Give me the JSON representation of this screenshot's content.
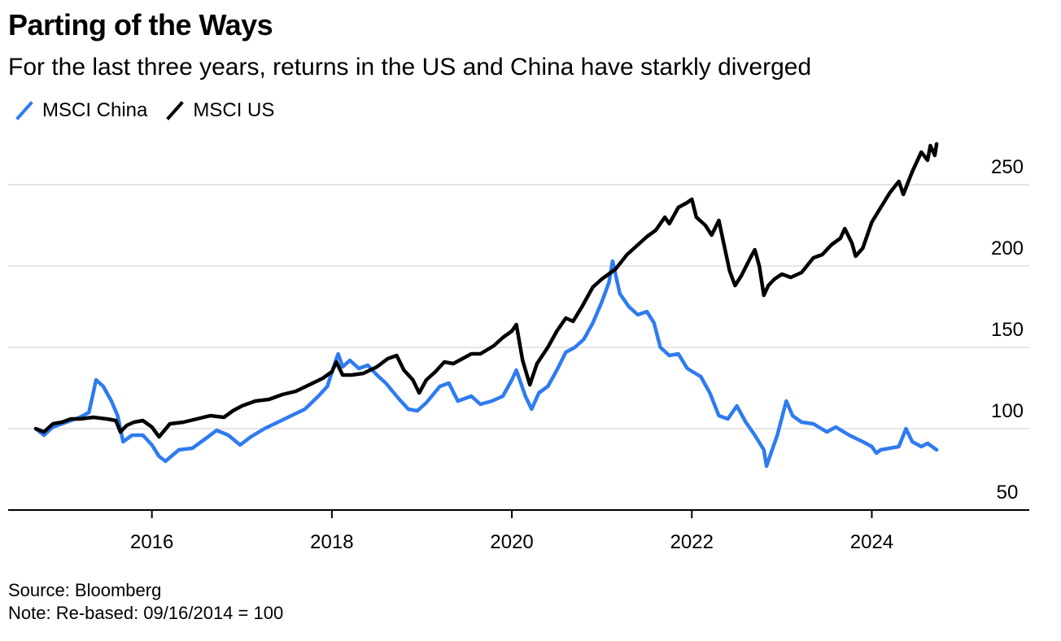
{
  "header": {
    "title": "Parting of the Ways",
    "subtitle": "For the last three years, returns in the US and China have starkly diverged"
  },
  "legend": [
    {
      "label": "MSCI China",
      "color": "#2f7bf0"
    },
    {
      "label": "MSCI US",
      "color": "#000000"
    }
  ],
  "footer": {
    "source": "Source: Bloomberg",
    "note": "Note: Re-based: 09/16/2014 = 100"
  },
  "chart_data": {
    "type": "line",
    "title": "Parting of the Ways",
    "subtitle": "For the last three years, returns in the US and China have starkly diverged",
    "xlabel": "",
    "ylabel": "",
    "xlim": [
      2014.55,
      2025.75
    ],
    "ylim": [
      50,
      285
    ],
    "x_ticks": [
      "2016",
      "2018",
      "2020",
      "2022",
      "2024"
    ],
    "y_ticks": [
      "50",
      "100",
      "150",
      "200",
      "250"
    ],
    "grid": true,
    "y_axis_position": "right",
    "legend_position": "top-left",
    "series": [
      {
        "name": "MSCI China",
        "color": "#2f7bf0",
        "points": [
          [
            2014.71,
            100
          ],
          [
            2014.8,
            96
          ],
          [
            2014.9,
            101
          ],
          [
            2015.0,
            103
          ],
          [
            2015.1,
            105
          ],
          [
            2015.2,
            107
          ],
          [
            2015.3,
            110
          ],
          [
            2015.38,
            130
          ],
          [
            2015.46,
            126
          ],
          [
            2015.55,
            117
          ],
          [
            2015.62,
            108
          ],
          [
            2015.68,
            92
          ],
          [
            2015.78,
            96
          ],
          [
            2015.9,
            96
          ],
          [
            2016.0,
            90
          ],
          [
            2016.08,
            83
          ],
          [
            2016.15,
            80
          ],
          [
            2016.3,
            87
          ],
          [
            2016.45,
            88
          ],
          [
            2016.6,
            94
          ],
          [
            2016.72,
            99
          ],
          [
            2016.85,
            96
          ],
          [
            2016.98,
            90
          ],
          [
            2017.1,
            95
          ],
          [
            2017.25,
            100
          ],
          [
            2017.4,
            104
          ],
          [
            2017.55,
            108
          ],
          [
            2017.7,
            112
          ],
          [
            2017.85,
            120
          ],
          [
            2017.95,
            126
          ],
          [
            2018.05,
            143
          ],
          [
            2018.07,
            146
          ],
          [
            2018.12,
            138
          ],
          [
            2018.2,
            142
          ],
          [
            2018.3,
            137
          ],
          [
            2018.4,
            139
          ],
          [
            2018.5,
            133
          ],
          [
            2018.6,
            128
          ],
          [
            2018.75,
            118
          ],
          [
            2018.85,
            112
          ],
          [
            2018.95,
            111
          ],
          [
            2019.05,
            116
          ],
          [
            2019.2,
            126
          ],
          [
            2019.3,
            128
          ],
          [
            2019.4,
            117
          ],
          [
            2019.55,
            120
          ],
          [
            2019.65,
            115
          ],
          [
            2019.78,
            117
          ],
          [
            2019.9,
            120
          ],
          [
            2020.0,
            130
          ],
          [
            2020.05,
            136
          ],
          [
            2020.15,
            120
          ],
          [
            2020.22,
            112
          ],
          [
            2020.3,
            122
          ],
          [
            2020.4,
            126
          ],
          [
            2020.5,
            136
          ],
          [
            2020.6,
            147
          ],
          [
            2020.7,
            150
          ],
          [
            2020.8,
            155
          ],
          [
            2020.9,
            165
          ],
          [
            2021.0,
            178
          ],
          [
            2021.08,
            190
          ],
          [
            2021.12,
            203
          ],
          [
            2021.2,
            183
          ],
          [
            2021.3,
            175
          ],
          [
            2021.4,
            170
          ],
          [
            2021.5,
            172
          ],
          [
            2021.58,
            165
          ],
          [
            2021.65,
            150
          ],
          [
            2021.75,
            145
          ],
          [
            2021.85,
            146
          ],
          [
            2021.95,
            137
          ],
          [
            2022.1,
            132
          ],
          [
            2022.2,
            122
          ],
          [
            2022.3,
            108
          ],
          [
            2022.4,
            106
          ],
          [
            2022.5,
            114
          ],
          [
            2022.6,
            104
          ],
          [
            2022.7,
            96
          ],
          [
            2022.8,
            87
          ],
          [
            2022.83,
            77
          ],
          [
            2022.88,
            85
          ],
          [
            2022.95,
            96
          ],
          [
            2023.05,
            117
          ],
          [
            2023.12,
            108
          ],
          [
            2023.22,
            104
          ],
          [
            2023.35,
            103
          ],
          [
            2023.5,
            98
          ],
          [
            2023.6,
            101
          ],
          [
            2023.75,
            96
          ],
          [
            2023.9,
            92
          ],
          [
            2024.0,
            89
          ],
          [
            2024.05,
            85
          ],
          [
            2024.1,
            87
          ],
          [
            2024.2,
            88
          ],
          [
            2024.3,
            89
          ],
          [
            2024.38,
            100
          ],
          [
            2024.45,
            92
          ],
          [
            2024.55,
            89
          ],
          [
            2024.62,
            91
          ],
          [
            2024.72,
            87
          ]
        ]
      },
      {
        "name": "MSCI US",
        "color": "#000000",
        "points": [
          [
            2014.71,
            100
          ],
          [
            2014.8,
            98
          ],
          [
            2014.9,
            103
          ],
          [
            2015.0,
            104
          ],
          [
            2015.1,
            106
          ],
          [
            2015.2,
            106
          ],
          [
            2015.35,
            107
          ],
          [
            2015.5,
            106
          ],
          [
            2015.6,
            105
          ],
          [
            2015.65,
            98
          ],
          [
            2015.72,
            102
          ],
          [
            2015.8,
            104
          ],
          [
            2015.9,
            105
          ],
          [
            2016.0,
            101
          ],
          [
            2016.08,
            95
          ],
          [
            2016.2,
            103
          ],
          [
            2016.35,
            104
          ],
          [
            2016.5,
            106
          ],
          [
            2016.65,
            108
          ],
          [
            2016.8,
            107
          ],
          [
            2016.9,
            111
          ],
          [
            2017.0,
            114
          ],
          [
            2017.15,
            117
          ],
          [
            2017.3,
            118
          ],
          [
            2017.45,
            121
          ],
          [
            2017.6,
            123
          ],
          [
            2017.75,
            127
          ],
          [
            2017.9,
            131
          ],
          [
            2018.0,
            135
          ],
          [
            2018.05,
            141
          ],
          [
            2018.12,
            133
          ],
          [
            2018.22,
            133
          ],
          [
            2018.35,
            134
          ],
          [
            2018.5,
            138
          ],
          [
            2018.62,
            143
          ],
          [
            2018.72,
            145
          ],
          [
            2018.8,
            136
          ],
          [
            2018.9,
            130
          ],
          [
            2018.97,
            122
          ],
          [
            2019.05,
            130
          ],
          [
            2019.15,
            135
          ],
          [
            2019.25,
            141
          ],
          [
            2019.35,
            140
          ],
          [
            2019.45,
            143
          ],
          [
            2019.55,
            146
          ],
          [
            2019.65,
            146
          ],
          [
            2019.8,
            151
          ],
          [
            2019.9,
            156
          ],
          [
            2020.0,
            160
          ],
          [
            2020.05,
            164
          ],
          [
            2020.12,
            142
          ],
          [
            2020.2,
            127
          ],
          [
            2020.28,
            140
          ],
          [
            2020.4,
            150
          ],
          [
            2020.5,
            160
          ],
          [
            2020.6,
            168
          ],
          [
            2020.68,
            166
          ],
          [
            2020.78,
            175
          ],
          [
            2020.9,
            187
          ],
          [
            2021.0,
            192
          ],
          [
            2021.15,
            198
          ],
          [
            2021.28,
            207
          ],
          [
            2021.38,
            212
          ],
          [
            2021.5,
            218
          ],
          [
            2021.6,
            222
          ],
          [
            2021.7,
            230
          ],
          [
            2021.75,
            226
          ],
          [
            2021.85,
            236
          ],
          [
            2021.95,
            239
          ],
          [
            2022.0,
            241
          ],
          [
            2022.05,
            230
          ],
          [
            2022.15,
            225
          ],
          [
            2022.22,
            219
          ],
          [
            2022.3,
            228
          ],
          [
            2022.35,
            215
          ],
          [
            2022.42,
            197
          ],
          [
            2022.48,
            188
          ],
          [
            2022.55,
            194
          ],
          [
            2022.65,
            205
          ],
          [
            2022.7,
            210
          ],
          [
            2022.75,
            200
          ],
          [
            2022.8,
            182
          ],
          [
            2022.85,
            188
          ],
          [
            2022.92,
            192
          ],
          [
            2023.0,
            195
          ],
          [
            2023.1,
            193
          ],
          [
            2023.22,
            196
          ],
          [
            2023.35,
            205
          ],
          [
            2023.45,
            207
          ],
          [
            2023.55,
            213
          ],
          [
            2023.65,
            217
          ],
          [
            2023.7,
            223
          ],
          [
            2023.78,
            214
          ],
          [
            2023.82,
            206
          ],
          [
            2023.9,
            211
          ],
          [
            2024.0,
            227
          ],
          [
            2024.1,
            236
          ],
          [
            2024.2,
            245
          ],
          [
            2024.3,
            252
          ],
          [
            2024.35,
            244
          ],
          [
            2024.45,
            258
          ],
          [
            2024.55,
            270
          ],
          [
            2024.62,
            265
          ],
          [
            2024.65,
            274
          ],
          [
            2024.7,
            268
          ],
          [
            2024.72,
            275
          ]
        ]
      }
    ]
  }
}
